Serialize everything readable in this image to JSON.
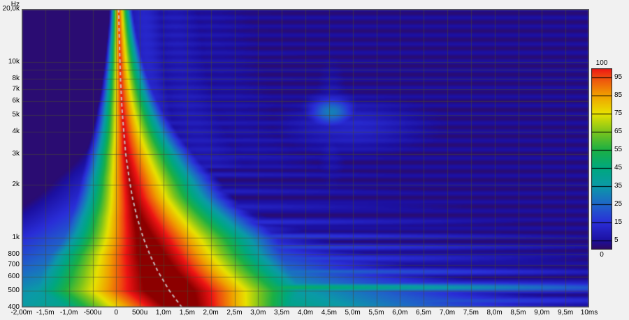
{
  "window": {
    "background": "#f1f1f1"
  },
  "axes": {
    "y_unit": "Hz",
    "y_ticks": [
      {
        "f": 20000,
        "label": "20,0k"
      },
      {
        "f": 10000,
        "label": "10k"
      },
      {
        "f": 8000,
        "label": "8k"
      },
      {
        "f": 7000,
        "label": "7k"
      },
      {
        "f": 6000,
        "label": "6k"
      },
      {
        "f": 5000,
        "label": "5k"
      },
      {
        "f": 4000,
        "label": "4k"
      },
      {
        "f": 3000,
        "label": "3k"
      },
      {
        "f": 2000,
        "label": "2k"
      },
      {
        "f": 1000,
        "label": "1k"
      },
      {
        "f": 800,
        "label": "800"
      },
      {
        "f": 700,
        "label": "700"
      },
      {
        "f": 600,
        "label": "600"
      },
      {
        "f": 500,
        "label": "500"
      },
      {
        "f": 400,
        "label": "400"
      }
    ],
    "x_ticks": [
      {
        "t": -2.0,
        "label": "-2,00m"
      },
      {
        "t": -1.5,
        "label": "-1,5m"
      },
      {
        "t": -1.0,
        "label": "-1,0m"
      },
      {
        "t": -0.5,
        "label": "-500u"
      },
      {
        "t": 0.0,
        "label": "0"
      },
      {
        "t": 0.5,
        "label": "500u"
      },
      {
        "t": 1.0,
        "label": "1,0m"
      },
      {
        "t": 1.5,
        "label": "1,5m"
      },
      {
        "t": 2.0,
        "label": "2,0m"
      },
      {
        "t": 2.5,
        "label": "2,5m"
      },
      {
        "t": 3.0,
        "label": "3,0m"
      },
      {
        "t": 3.5,
        "label": "3,5m"
      },
      {
        "t": 4.0,
        "label": "4,0m"
      },
      {
        "t": 4.5,
        "label": "4,5m"
      },
      {
        "t": 5.0,
        "label": "5,0m"
      },
      {
        "t": 5.5,
        "label": "5,5m"
      },
      {
        "t": 6.0,
        "label": "6,0m"
      },
      {
        "t": 6.5,
        "label": "6,5m"
      },
      {
        "t": 7.0,
        "label": "7,0m"
      },
      {
        "t": 7.5,
        "label": "7,5m"
      },
      {
        "t": 8.0,
        "label": "8,0m"
      },
      {
        "t": 8.5,
        "label": "8,5m"
      },
      {
        "t": 9.0,
        "label": "9,0m"
      },
      {
        "t": 9.5,
        "label": "9,5m"
      },
      {
        "t": 10.0,
        "label": "10ms"
      }
    ]
  },
  "legend": {
    "max_label": "100",
    "min_label": "0",
    "side_ticks": [
      95,
      85,
      75,
      65,
      55,
      45,
      35,
      25,
      15,
      5
    ]
  },
  "chart_data": {
    "type": "heatmap",
    "x_range_ms": [
      -2,
      10
    ],
    "freq_range_hz": [
      400,
      20000
    ],
    "freq_scale": "log",
    "value_range": [
      0,
      100
    ],
    "grid": {
      "x_step_ms": 0.5,
      "y_freqs": [
        500,
        600,
        700,
        800,
        900,
        1000,
        2000,
        3000,
        4000,
        5000,
        6000,
        7000,
        8000,
        9000,
        10000,
        20000
      ],
      "color": "rgba(72,72,50,0.55)"
    },
    "palette_stops": [
      [
        0,
        "#300a5e"
      ],
      [
        5,
        "#1c10a0"
      ],
      [
        15,
        "#2a2ed8"
      ],
      [
        25,
        "#1f66c8"
      ],
      [
        35,
        "#0b9aa8"
      ],
      [
        45,
        "#00a87e"
      ],
      [
        55,
        "#1cb044"
      ],
      [
        65,
        "#7cc41c"
      ],
      [
        75,
        "#e8e200"
      ],
      [
        85,
        "#f0a000"
      ],
      [
        95,
        "#ee4a10"
      ],
      [
        100,
        "#ee1414"
      ],
      [
        112,
        "#8c0000"
      ]
    ],
    "peak_line": {
      "color": "rgba(204,204,204,0.9)",
      "dash": [
        5,
        4
      ],
      "width": 2
    },
    "model": {
      "bands_columns": [
        "freq_hz",
        "peak_time_ms",
        "peak_value",
        "slope_left_per_ms",
        "slope_right_per_ms",
        "pedestal_level",
        "pedestal_slope_per_ms"
      ],
      "bands": [
        [
          400,
          1.39,
          124,
          34,
          36,
          58,
          6.5
        ],
        [
          500,
          1.12,
          130,
          34,
          34,
          55,
          7
        ],
        [
          650,
          0.87,
          126,
          40,
          36,
          48,
          8
        ],
        [
          800,
          0.71,
          124,
          47,
          38,
          44,
          9
        ],
        [
          1000,
          0.57,
          120,
          58,
          38,
          40,
          10
        ],
        [
          1300,
          0.44,
          116,
          70,
          44,
          34,
          11.5
        ],
        [
          1700,
          0.34,
          112,
          85,
          52,
          28,
          13
        ],
        [
          2200,
          0.27,
          110,
          100,
          58,
          24,
          15
        ],
        [
          3000,
          0.2,
          107,
          125,
          70,
          18,
          18
        ],
        [
          4000,
          0.16,
          104,
          155,
          88,
          13,
          22
        ],
        [
          5500,
          0.12,
          102,
          195,
          112,
          9,
          28
        ],
        [
          8000,
          0.09,
          100,
          260,
          150,
          6,
          38
        ],
        [
          12000,
          0.07,
          99,
          350,
          210,
          4,
          55
        ],
        [
          20000,
          0.05,
          98,
          520,
          310,
          3,
          85
        ]
      ],
      "resonances_columns": [
        "freq_hz",
        "level",
        "decay_per_ms",
        "sigma_decades"
      ],
      "resonances": [
        [
          435,
          40,
          3.2,
          0.016
        ],
        [
          520,
          62,
          4.5,
          0.02
        ],
        [
          640,
          38,
          3.5,
          0.016
        ],
        [
          760,
          30,
          3.0,
          0.014
        ],
        [
          880,
          27,
          2.6,
          0.014
        ],
        [
          1020,
          24,
          2.4,
          0.013
        ],
        [
          1220,
          20,
          2.2,
          0.013
        ],
        [
          1500,
          16,
          2.0,
          0.013
        ],
        [
          1850,
          13,
          1.8,
          0.012
        ],
        [
          2300,
          11,
          1.6,
          0.012
        ],
        [
          2900,
          10,
          1.5,
          0.012
        ],
        [
          3600,
          9,
          1.4,
          0.012
        ],
        [
          4500,
          8,
          1.3,
          0.012
        ],
        [
          6000,
          7,
          1.2,
          0.012
        ],
        [
          8000,
          6,
          1.1,
          0.012
        ],
        [
          11000,
          6,
          1.0,
          0.012
        ],
        [
          15000,
          5,
          0.9,
          0.012
        ],
        [
          19000,
          5,
          0.9,
          0.012
        ]
      ],
      "reflections": [
        {
          "t_ms": 4.55,
          "freq_hz": 5200,
          "level": 30,
          "sigma_t": 0.32,
          "sigma_decades": 0.055
        },
        {
          "t_ms": 5.0,
          "freq_hz": 4300,
          "level": 11,
          "sigma_t": 1.0,
          "sigma_decades": 0.1
        },
        {
          "t_ms": 4.55,
          "freq_hz": 4500,
          "level": 8,
          "sigma_t": 0.2,
          "sigma_decades": 0.22
        }
      ],
      "sidelobes": {
        "min_freq_hz": 2500,
        "amp": [
          12,
          7,
          4
        ]
      },
      "ripple": {
        "cycles_per_decade": 20,
        "amp": 2.2,
        "phase": 1.3
      }
    }
  }
}
